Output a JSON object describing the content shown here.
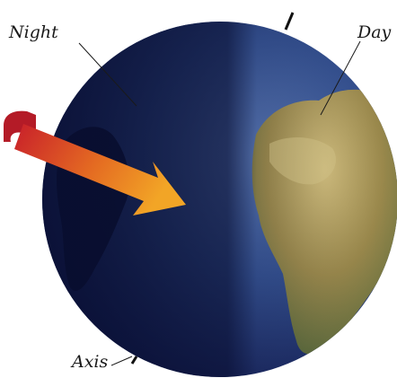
{
  "labels": {
    "night": "Night",
    "day": "Day",
    "axis": "Axis"
  },
  "colors": {
    "ocean_night": "#10164a",
    "ocean_day": "#3d5f9c",
    "land_day": "#b9a35c",
    "land_green": "#4f6a3c",
    "arrow_start": "#c81f2a",
    "arrow_end": "#f0a020"
  },
  "icons": {
    "sunlight": "sunlight-arrow-icon"
  }
}
